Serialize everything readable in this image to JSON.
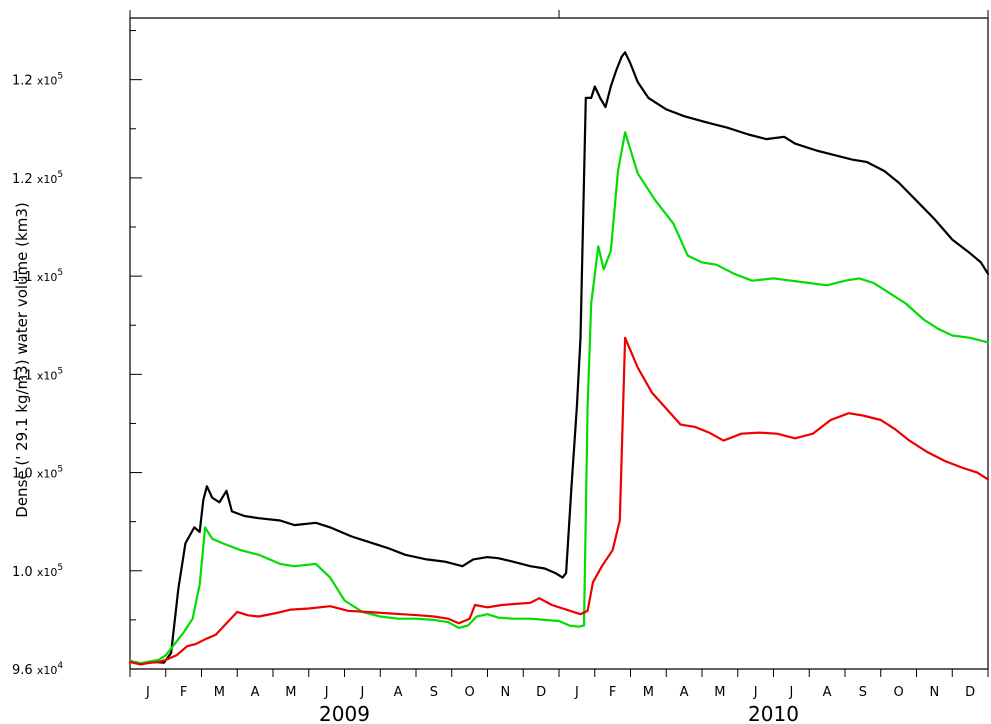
{
  "chart_data": {
    "type": "line",
    "ylabel": "Dense (' 29.1 kg/m3) water volume (km3)",
    "ylim": [
      96000,
      124500
    ],
    "yticks": [
      {
        "value": 96000,
        "mant": "9.6",
        "exp": "4"
      },
      {
        "value": 100300,
        "mant": "1.0",
        "exp": "5"
      },
      {
        "value": 104600,
        "mant": "1.0",
        "exp": "5"
      },
      {
        "value": 108900,
        "mant": "1.1",
        "exp": "5"
      },
      {
        "value": 113200,
        "mant": "1.1",
        "exp": "5"
      },
      {
        "value": 117500,
        "mant": "1.2",
        "exp": "5"
      },
      {
        "value": 121800,
        "mant": "1.2",
        "exp": "5"
      }
    ],
    "x_unit": "month index from start of Jan 2009",
    "xlim": [
      0,
      24
    ],
    "month_labels": [
      "J",
      "F",
      "M",
      "A",
      "M",
      "J",
      "J",
      "A",
      "S",
      "O",
      "N",
      "D",
      "J",
      "F",
      "M",
      "A",
      "M",
      "J",
      "J",
      "A",
      "S",
      "O",
      "N",
      "D"
    ],
    "year_labels": [
      {
        "label": "2009",
        "center": 6
      },
      {
        "label": "2010",
        "center": 18
      }
    ],
    "series": [
      {
        "color": "#000000",
        "points": [
          [
            0.0,
            96350
          ],
          [
            0.3,
            96250
          ],
          [
            0.55,
            96320
          ],
          [
            0.75,
            96300
          ],
          [
            0.95,
            96280
          ],
          [
            1.15,
            96700
          ],
          [
            1.35,
            99500
          ],
          [
            1.55,
            101500
          ],
          [
            1.8,
            102200
          ],
          [
            1.95,
            102000
          ],
          [
            2.05,
            103400
          ],
          [
            2.15,
            104000
          ],
          [
            2.3,
            103500
          ],
          [
            2.5,
            103300
          ],
          [
            2.7,
            103800
          ],
          [
            2.85,
            102900
          ],
          [
            3.2,
            102700
          ],
          [
            3.6,
            102600
          ],
          [
            4.2,
            102500
          ],
          [
            4.6,
            102300
          ],
          [
            5.2,
            102400
          ],
          [
            5.6,
            102200
          ],
          [
            6.2,
            101800
          ],
          [
            6.6,
            101600
          ],
          [
            7.2,
            101300
          ],
          [
            7.7,
            101000
          ],
          [
            8.3,
            100800
          ],
          [
            8.8,
            100700
          ],
          [
            9.3,
            100500
          ],
          [
            9.6,
            100800
          ],
          [
            10.0,
            100900
          ],
          [
            10.3,
            100850
          ],
          [
            10.7,
            100700
          ],
          [
            11.2,
            100500
          ],
          [
            11.6,
            100400
          ],
          [
            11.9,
            100200
          ],
          [
            12.1,
            100000
          ],
          [
            12.2,
            100200
          ],
          [
            12.35,
            104000
          ],
          [
            12.5,
            107500
          ],
          [
            12.6,
            110500
          ],
          [
            12.75,
            121000
          ],
          [
            12.9,
            121000
          ],
          [
            13.0,
            121500
          ],
          [
            13.15,
            121000
          ],
          [
            13.3,
            120600
          ],
          [
            13.45,
            121500
          ],
          [
            13.6,
            122200
          ],
          [
            13.75,
            122800
          ],
          [
            13.85,
            123000
          ],
          [
            14.0,
            122500
          ],
          [
            14.2,
            121700
          ],
          [
            14.5,
            121000
          ],
          [
            15.0,
            120500
          ],
          [
            15.5,
            120200
          ],
          [
            16.2,
            119900
          ],
          [
            16.7,
            119700
          ],
          [
            17.3,
            119400
          ],
          [
            17.8,
            119200
          ],
          [
            18.3,
            119300
          ],
          [
            18.6,
            119000
          ],
          [
            19.2,
            118700
          ],
          [
            19.7,
            118500
          ],
          [
            20.2,
            118300
          ],
          [
            20.6,
            118200
          ],
          [
            21.1,
            117800
          ],
          [
            21.5,
            117300
          ],
          [
            22.0,
            116500
          ],
          [
            22.5,
            115700
          ],
          [
            23.0,
            114800
          ],
          [
            23.5,
            114200
          ],
          [
            23.8,
            113800
          ],
          [
            24.0,
            113300
          ]
        ]
      },
      {
        "color": "#00dd00",
        "points": [
          [
            0.0,
            96350
          ],
          [
            0.3,
            96250
          ],
          [
            0.55,
            96330
          ],
          [
            0.8,
            96400
          ],
          [
            1.0,
            96600
          ],
          [
            1.2,
            97000
          ],
          [
            1.5,
            97600
          ],
          [
            1.75,
            98200
          ],
          [
            1.95,
            99700
          ],
          [
            2.1,
            102200
          ],
          [
            2.3,
            101700
          ],
          [
            2.6,
            101500
          ],
          [
            3.1,
            101200
          ],
          [
            3.6,
            101000
          ],
          [
            4.2,
            100600
          ],
          [
            4.6,
            100500
          ],
          [
            5.2,
            100600
          ],
          [
            5.6,
            100000
          ],
          [
            6.0,
            99000
          ],
          [
            6.5,
            98500
          ],
          [
            7.0,
            98300
          ],
          [
            7.5,
            98200
          ],
          [
            8.0,
            98200
          ],
          [
            8.5,
            98150
          ],
          [
            8.9,
            98050
          ],
          [
            9.2,
            97800
          ],
          [
            9.45,
            97900
          ],
          [
            9.7,
            98300
          ],
          [
            10.0,
            98400
          ],
          [
            10.3,
            98250
          ],
          [
            10.7,
            98200
          ],
          [
            11.2,
            98200
          ],
          [
            11.6,
            98150
          ],
          [
            12.0,
            98100
          ],
          [
            12.3,
            97900
          ],
          [
            12.55,
            97850
          ],
          [
            12.7,
            97900
          ],
          [
            12.8,
            107500
          ],
          [
            12.9,
            112000
          ],
          [
            13.1,
            114500
          ],
          [
            13.25,
            113500
          ],
          [
            13.45,
            114300
          ],
          [
            13.65,
            117800
          ],
          [
            13.85,
            119500
          ],
          [
            14.2,
            117700
          ],
          [
            14.7,
            116500
          ],
          [
            15.2,
            115500
          ],
          [
            15.6,
            114100
          ],
          [
            16.0,
            113800
          ],
          [
            16.4,
            113700
          ],
          [
            16.9,
            113300
          ],
          [
            17.4,
            113000
          ],
          [
            18.0,
            113100
          ],
          [
            18.5,
            113000
          ],
          [
            19.0,
            112900
          ],
          [
            19.5,
            112800
          ],
          [
            20.0,
            113000
          ],
          [
            20.4,
            113100
          ],
          [
            20.8,
            112900
          ],
          [
            21.2,
            112500
          ],
          [
            21.7,
            112000
          ],
          [
            22.2,
            111300
          ],
          [
            22.6,
            110900
          ],
          [
            23.0,
            110600
          ],
          [
            23.5,
            110500
          ],
          [
            24.0,
            110300
          ]
        ]
      },
      {
        "color": "#ee0000",
        "points": [
          [
            0.0,
            96300
          ],
          [
            0.3,
            96200
          ],
          [
            0.55,
            96270
          ],
          [
            0.8,
            96300
          ],
          [
            1.0,
            96400
          ],
          [
            1.3,
            96600
          ],
          [
            1.6,
            97000
          ],
          [
            1.85,
            97100
          ],
          [
            2.1,
            97300
          ],
          [
            2.4,
            97500
          ],
          [
            2.7,
            98000
          ],
          [
            3.0,
            98500
          ],
          [
            3.3,
            98350
          ],
          [
            3.6,
            98300
          ],
          [
            4.1,
            98450
          ],
          [
            4.5,
            98600
          ],
          [
            5.0,
            98650
          ],
          [
            5.6,
            98750
          ],
          [
            6.1,
            98550
          ],
          [
            6.6,
            98500
          ],
          [
            7.1,
            98450
          ],
          [
            7.6,
            98400
          ],
          [
            8.1,
            98350
          ],
          [
            8.5,
            98300
          ],
          [
            8.9,
            98200
          ],
          [
            9.2,
            98000
          ],
          [
            9.5,
            98200
          ],
          [
            9.65,
            98800
          ],
          [
            10.0,
            98700
          ],
          [
            10.4,
            98800
          ],
          [
            10.8,
            98850
          ],
          [
            11.2,
            98900
          ],
          [
            11.45,
            99100
          ],
          [
            11.8,
            98800
          ],
          [
            12.2,
            98600
          ],
          [
            12.6,
            98400
          ],
          [
            12.8,
            98550
          ],
          [
            12.95,
            99800
          ],
          [
            13.2,
            100500
          ],
          [
            13.5,
            101200
          ],
          [
            13.7,
            102500
          ],
          [
            13.85,
            110500
          ],
          [
            14.2,
            109200
          ],
          [
            14.6,
            108100
          ],
          [
            15.0,
            107400
          ],
          [
            15.4,
            106700
          ],
          [
            15.8,
            106600
          ],
          [
            16.2,
            106350
          ],
          [
            16.6,
            106000
          ],
          [
            17.1,
            106300
          ],
          [
            17.6,
            106350
          ],
          [
            18.1,
            106300
          ],
          [
            18.6,
            106100
          ],
          [
            19.1,
            106300
          ],
          [
            19.6,
            106900
          ],
          [
            20.1,
            107200
          ],
          [
            20.5,
            107100
          ],
          [
            21.0,
            106900
          ],
          [
            21.4,
            106500
          ],
          [
            21.8,
            106000
          ],
          [
            22.3,
            105500
          ],
          [
            22.8,
            105100
          ],
          [
            23.3,
            104800
          ],
          [
            23.7,
            104600
          ],
          [
            24.0,
            104300
          ]
        ]
      }
    ]
  }
}
